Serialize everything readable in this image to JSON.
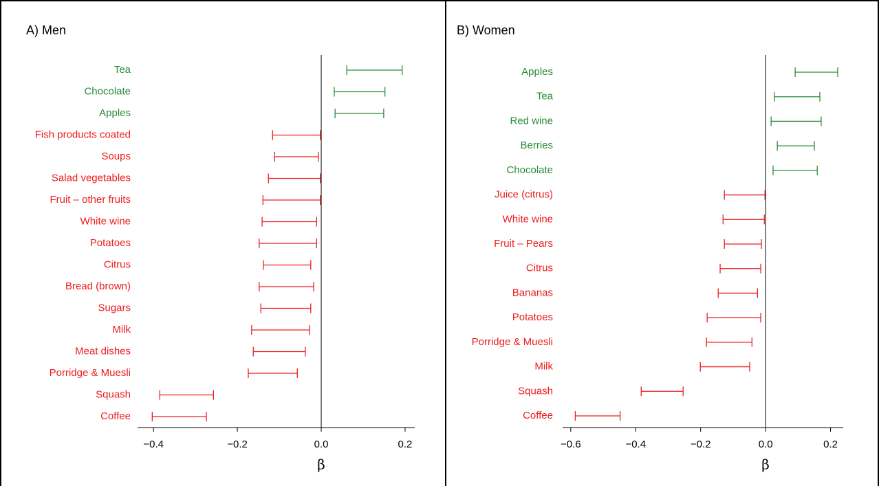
{
  "chart_data": [
    {
      "type": "interval",
      "title": "A) Men",
      "x_label": "β",
      "categories": [
        "Tea",
        "Chocolate",
        "Apples",
        "Fish products coated",
        "Soups",
        "Salad vegetables",
        "Fruit – other fruits",
        "White wine",
        "Potatoes",
        "Citrus",
        "Bread (brown)",
        "Sugars",
        "Milk",
        "Meat dishes",
        "Porridge & Muesli",
        "Squash",
        "Coffee"
      ],
      "low": [
        0.061,
        0.031,
        0.033,
        -0.116,
        -0.111,
        -0.126,
        -0.139,
        -0.141,
        -0.148,
        -0.138,
        -0.148,
        -0.144,
        -0.166,
        -0.162,
        -0.174,
        -0.385,
        -0.403
      ],
      "high": [
        0.193,
        0.152,
        0.149,
        -0.002,
        -0.007,
        -0.002,
        -0.002,
        -0.011,
        -0.011,
        -0.025,
        -0.018,
        -0.025,
        -0.028,
        -0.038,
        -0.057,
        -0.257,
        -0.274
      ],
      "colors": [
        "#2a8a3a",
        "#2a8a3a",
        "#2a8a3a",
        "#ee1c1c",
        "#ee1c1c",
        "#ee1c1c",
        "#ee1c1c",
        "#ee1c1c",
        "#ee1c1c",
        "#ee1c1c",
        "#ee1c1c",
        "#ee1c1c",
        "#ee1c1c",
        "#ee1c1c",
        "#ee1c1c",
        "#ee1c1c",
        "#ee1c1c"
      ],
      "xlim": [
        -0.438,
        0.223
      ],
      "xticks": [
        {
          "value": -0.4,
          "label": "−0.4"
        },
        {
          "value": -0.2,
          "label": "−0.2"
        },
        {
          "value": 0,
          "label": "0.0"
        },
        {
          "value": 0.2,
          "label": "0.2"
        }
      ],
      "reference_line": 0
    },
    {
      "type": "interval",
      "title": "B) Women",
      "x_label": "β",
      "categories": [
        "Apples",
        "Tea",
        "Red wine",
        "Berries",
        "Chocolate",
        "Juice (citrus)",
        "White wine",
        "Fruit – Pears",
        "Citrus",
        "Bananas",
        "Potatoes",
        "Porridge & Muesli",
        "Milk",
        "Squash",
        "Coffee"
      ],
      "low": [
        0.091,
        0.027,
        0.017,
        0.036,
        0.023,
        -0.127,
        -0.131,
        -0.127,
        -0.14,
        -0.146,
        -0.18,
        -0.182,
        -0.201,
        -0.383,
        -0.586
      ],
      "high": [
        0.222,
        0.167,
        0.171,
        0.15,
        0.159,
        -0.002,
        -0.004,
        -0.013,
        -0.015,
        -0.025,
        -0.015,
        -0.042,
        -0.049,
        -0.254,
        -0.448
      ],
      "colors": [
        "#2a8a3a",
        "#2a8a3a",
        "#2a8a3a",
        "#2a8a3a",
        "#2a8a3a",
        "#ee1c1c",
        "#ee1c1c",
        "#ee1c1c",
        "#ee1c1c",
        "#ee1c1c",
        "#ee1c1c",
        "#ee1c1c",
        "#ee1c1c",
        "#ee1c1c",
        "#ee1c1c"
      ],
      "xlim": [
        -0.625,
        0.239
      ],
      "xticks": [
        {
          "value": -0.6,
          "label": "−0.6"
        },
        {
          "value": -0.4,
          "label": "−0.4"
        },
        {
          "value": -0.2,
          "label": "−0.2"
        },
        {
          "value": 0,
          "label": "0.0"
        },
        {
          "value": 0.2,
          "label": "0.2"
        }
      ],
      "reference_line": 0
    }
  ]
}
